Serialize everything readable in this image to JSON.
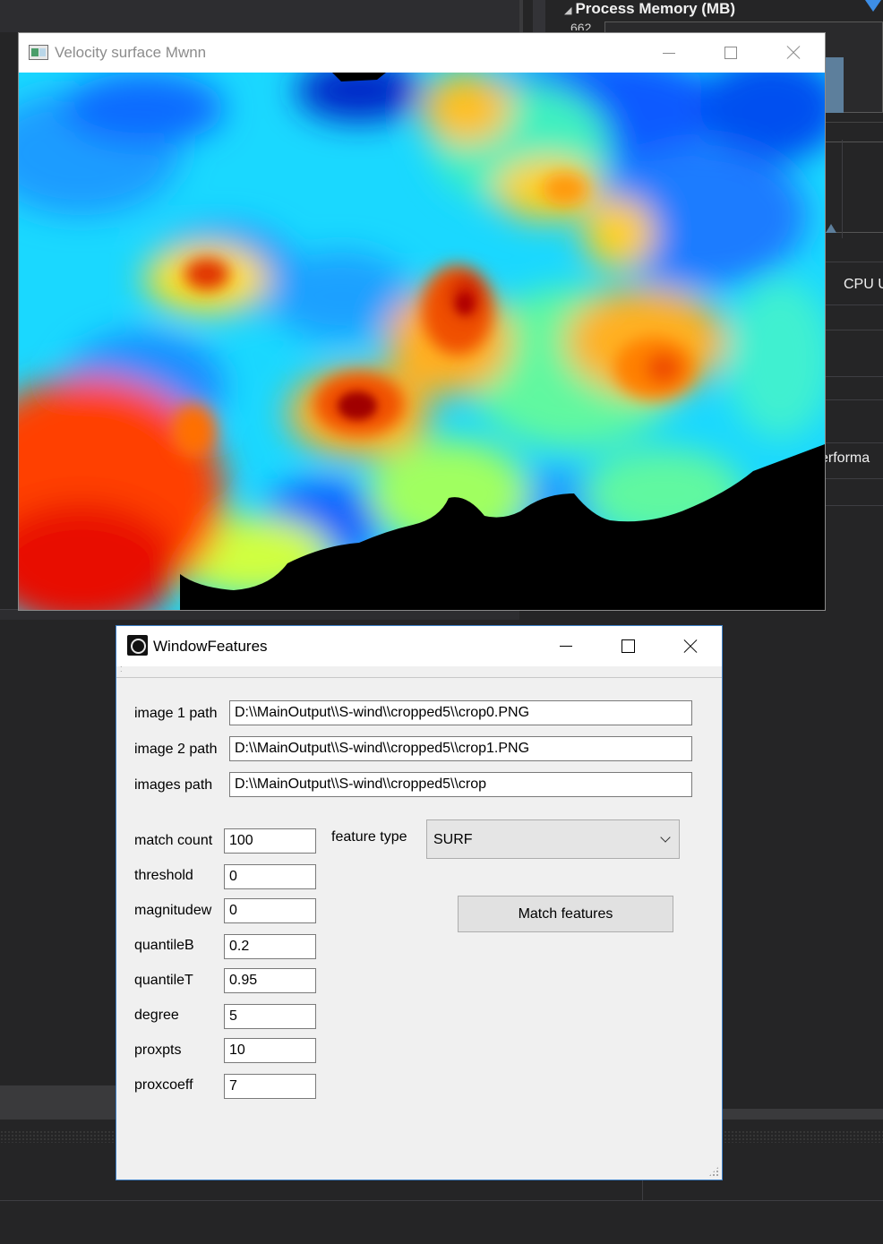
{
  "background_ide": {
    "process_memory_label": "Process Memory (MB)",
    "process_memory_value": "662",
    "cpu_label": "CPU U",
    "perf_label": "erforma"
  },
  "velocity_window": {
    "title": "Velocity surface Mwnn",
    "image_description": "jet-colormap velocity surface heatmap"
  },
  "features_window": {
    "title": "WindowFeatures",
    "paths": [
      {
        "label": "image 1 path",
        "value": "D:\\\\MainOutput\\\\S-wind\\\\cropped5\\\\crop0.PNG"
      },
      {
        "label": "image 2 path",
        "value": "D:\\\\MainOutput\\\\S-wind\\\\cropped5\\\\crop1.PNG"
      },
      {
        "label": "images path",
        "value": "D:\\\\MainOutput\\\\S-wind\\\\cropped5\\\\crop"
      }
    ],
    "params": [
      {
        "label": "match count",
        "value": "100"
      },
      {
        "label": "threshold",
        "value": "0"
      },
      {
        "label": "magnitudew",
        "value": "0"
      },
      {
        "label": "quantileB",
        "value": "0.2"
      },
      {
        "label": "quantileT",
        "value": "0.95"
      },
      {
        "label": "degree",
        "value": "5"
      },
      {
        "label": "proxpts",
        "value": "10"
      },
      {
        "label": "proxcoeff",
        "value": "7"
      }
    ],
    "feature_type_label": "feature type",
    "feature_type_value": "SURF",
    "match_button_label": "Match features"
  },
  "colors": {
    "ide_bg": "#252526",
    "window_accent": "#3d7fc6",
    "process_memory_bar": "#5d7f9c"
  }
}
